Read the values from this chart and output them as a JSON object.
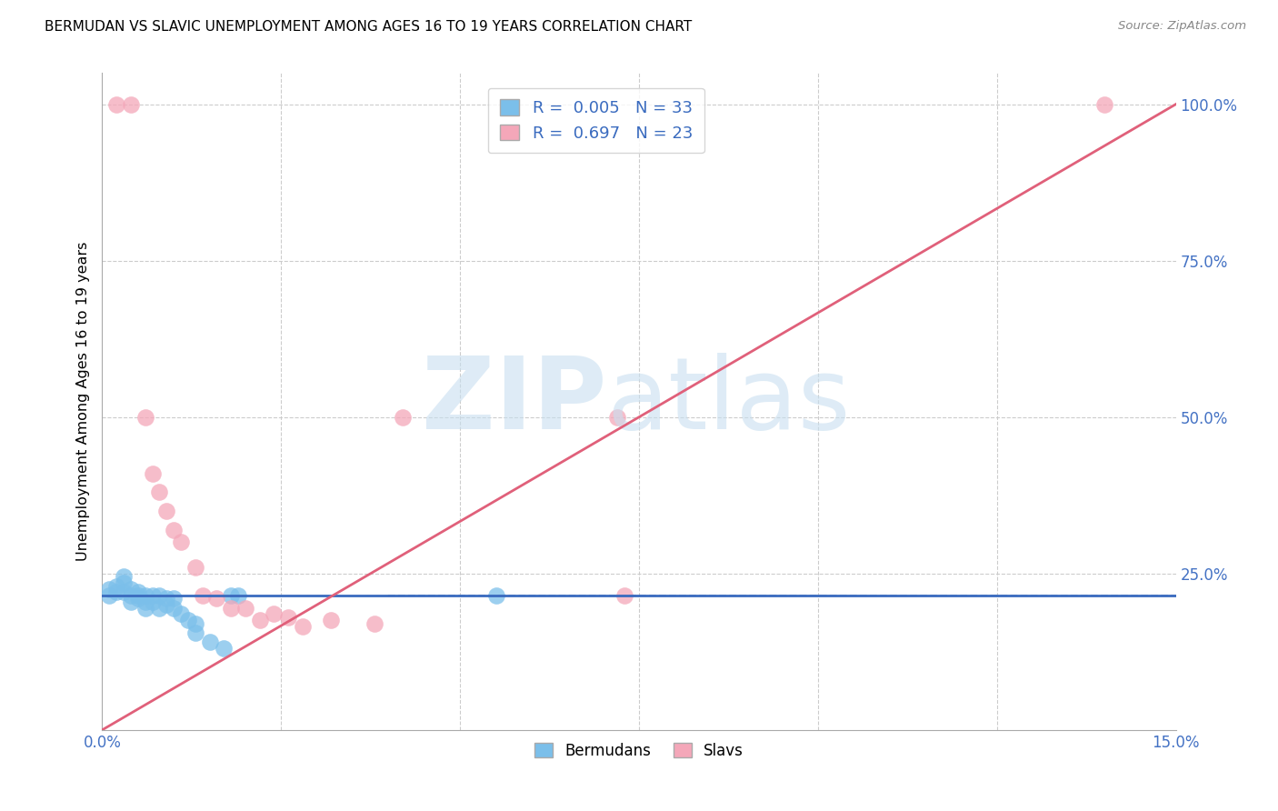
{
  "title": "BERMUDAN VS SLAVIC UNEMPLOYMENT AMONG AGES 16 TO 19 YEARS CORRELATION CHART",
  "source": "Source: ZipAtlas.com",
  "ylabel": "Unemployment Among Ages 16 to 19 years",
  "xlim": [
    0.0,
    0.15
  ],
  "ylim": [
    0.0,
    1.05
  ],
  "ytick_labels": [
    "25.0%",
    "50.0%",
    "75.0%",
    "100.0%"
  ],
  "ytick_values": [
    0.25,
    0.5,
    0.75,
    1.0
  ],
  "bermuda_color": "#7bbfea",
  "slav_color": "#f4a7b9",
  "bermuda_line_color": "#3a6bbf",
  "slav_line_color": "#e0607a",
  "background_color": "#ffffff",
  "grid_color": "#cccccc",
  "bermuda_x": [
    0.001,
    0.001,
    0.002,
    0.002,
    0.003,
    0.003,
    0.003,
    0.004,
    0.004,
    0.004,
    0.005,
    0.005,
    0.005,
    0.006,
    0.006,
    0.006,
    0.007,
    0.007,
    0.008,
    0.008,
    0.009,
    0.009,
    0.01,
    0.01,
    0.011,
    0.012,
    0.013,
    0.013,
    0.015,
    0.017,
    0.018,
    0.019,
    0.055
  ],
  "bermuda_y": [
    0.225,
    0.215,
    0.23,
    0.22,
    0.245,
    0.235,
    0.22,
    0.225,
    0.215,
    0.205,
    0.22,
    0.215,
    0.21,
    0.215,
    0.205,
    0.195,
    0.215,
    0.205,
    0.215,
    0.195,
    0.21,
    0.2,
    0.21,
    0.195,
    0.185,
    0.175,
    0.17,
    0.155,
    0.14,
    0.13,
    0.215,
    0.215,
    0.215
  ],
  "slav_x": [
    0.002,
    0.004,
    0.006,
    0.007,
    0.008,
    0.009,
    0.01,
    0.011,
    0.013,
    0.014,
    0.016,
    0.018,
    0.02,
    0.022,
    0.024,
    0.026,
    0.028,
    0.032,
    0.038,
    0.042,
    0.072,
    0.073,
    0.14
  ],
  "slav_y": [
    1.0,
    1.0,
    0.5,
    0.41,
    0.38,
    0.35,
    0.32,
    0.3,
    0.26,
    0.215,
    0.21,
    0.195,
    0.195,
    0.175,
    0.185,
    0.18,
    0.165,
    0.175,
    0.17,
    0.5,
    0.5,
    0.215,
    1.0
  ],
  "bermuda_trend": [
    0.0,
    0.15,
    0.215,
    0.215
  ],
  "slav_trend": [
    0.0,
    0.15,
    0.0,
    1.0
  ],
  "dashed_line_y": 0.215,
  "dashed_line_xstart": 0.04
}
